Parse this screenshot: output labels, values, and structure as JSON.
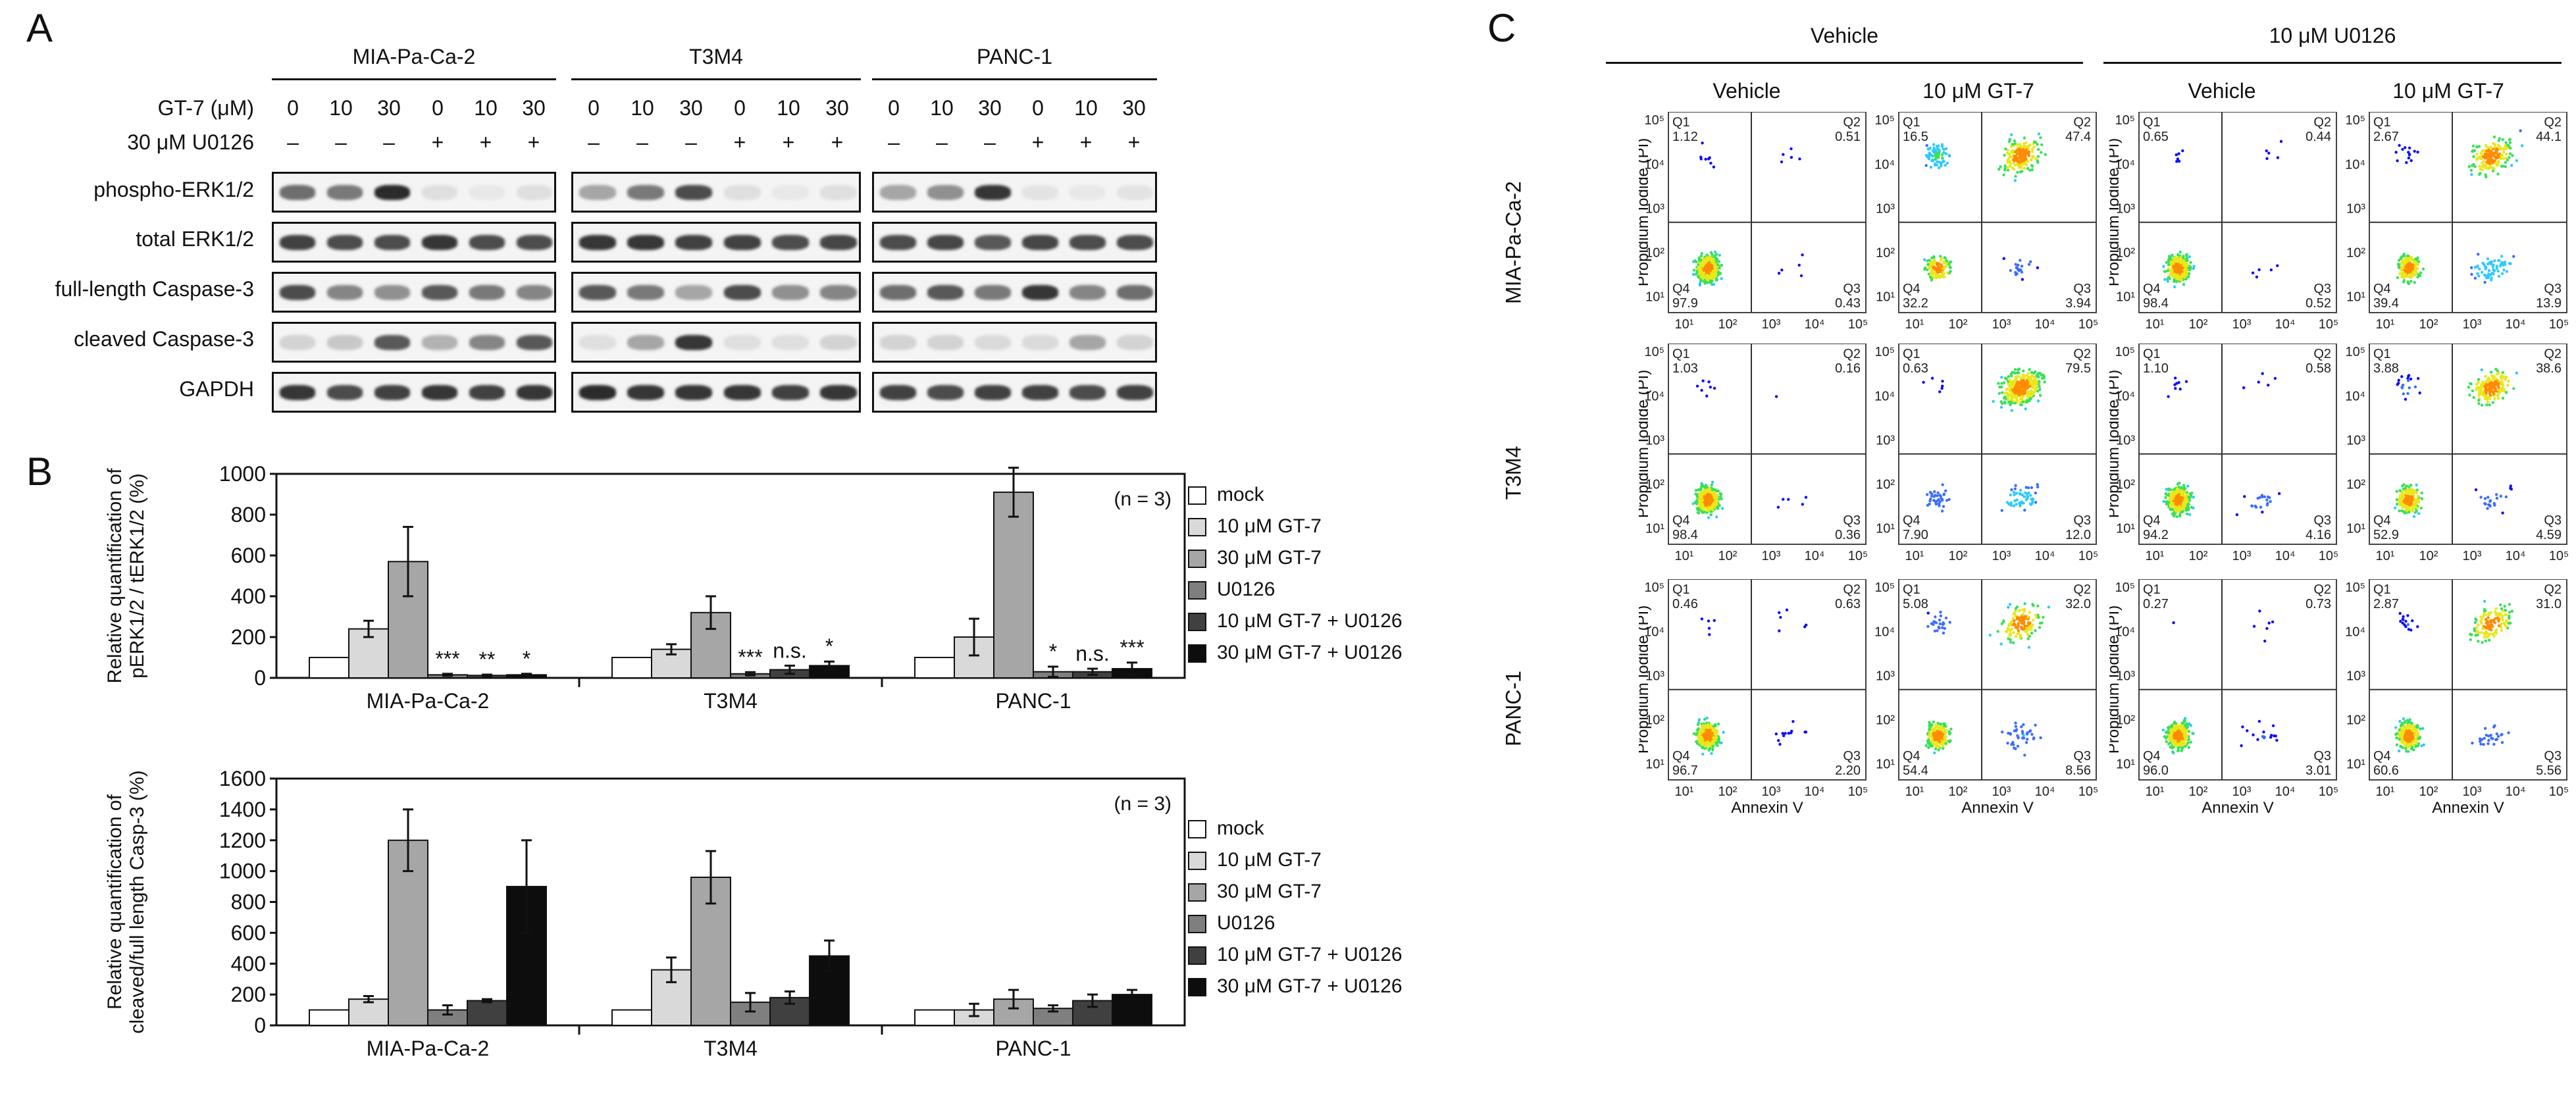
{
  "panels": {
    "a": "A",
    "b": "B",
    "c": "C"
  },
  "panel_a": {
    "cell_lines": [
      "MIA-Pa-Ca-2",
      "T3M4",
      "PANC-1"
    ],
    "row_gt7_label": "GT-7 (μM)",
    "row_u0126_label": "30 μM U0126",
    "gt7_values": [
      "0",
      "10",
      "30",
      "0",
      "10",
      "30"
    ],
    "u0126_values": [
      "–",
      "–",
      "–",
      "+",
      "+",
      "+"
    ],
    "blot_rows": [
      {
        "name": "phospho-ERK1/2",
        "intensity": [
          [
            0.6,
            0.55,
            0.9,
            0.1,
            0.06,
            0.1
          ],
          [
            0.35,
            0.55,
            0.75,
            0.1,
            0.06,
            0.1
          ],
          [
            0.35,
            0.45,
            0.85,
            0.08,
            0.06,
            0.08
          ]
        ]
      },
      {
        "name": "total ERK1/2",
        "intensity": [
          [
            0.8,
            0.75,
            0.75,
            0.85,
            0.75,
            0.75
          ],
          [
            0.85,
            0.85,
            0.8,
            0.8,
            0.75,
            0.78
          ],
          [
            0.75,
            0.78,
            0.7,
            0.78,
            0.75,
            0.75
          ]
        ]
      },
      {
        "name": "full-length Caspase-3",
        "intensity": [
          [
            0.75,
            0.5,
            0.45,
            0.7,
            0.55,
            0.5
          ],
          [
            0.7,
            0.55,
            0.35,
            0.75,
            0.45,
            0.5
          ],
          [
            0.6,
            0.7,
            0.55,
            0.85,
            0.5,
            0.6
          ]
        ]
      },
      {
        "name": "cleaved Caspase-3",
        "intensity": [
          [
            0.15,
            0.2,
            0.7,
            0.3,
            0.5,
            0.7
          ],
          [
            0.1,
            0.35,
            0.85,
            0.1,
            0.1,
            0.15
          ],
          [
            0.15,
            0.15,
            0.12,
            0.12,
            0.35,
            0.15
          ]
        ]
      },
      {
        "name": "GAPDH",
        "intensity": [
          [
            0.85,
            0.75,
            0.8,
            0.85,
            0.8,
            0.85
          ],
          [
            0.9,
            0.85,
            0.85,
            0.85,
            0.8,
            0.85
          ],
          [
            0.8,
            0.75,
            0.8,
            0.8,
            0.75,
            0.8
          ]
        ]
      }
    ]
  },
  "panel_b": {
    "legend": [
      "mock",
      "10 μM GT-7",
      "30 μM GT-7",
      "U0126",
      "10 μM GT-7 + U0126",
      "30 μM GT-7 + U0126"
    ],
    "series_colors": [
      "#ffffff",
      "#d9d9d9",
      "#a6a6a6",
      "#7f7f7f",
      "#404040",
      "#0d0d0d"
    ]
  },
  "chart_data": [
    {
      "type": "bar",
      "title": "",
      "ylabel": "Relative quantification of pERK1/2 / tERK1/2 (%)",
      "ylabel_lines": [
        "Relative quantification of",
        "pERK1/2 / tERK1/2 (%)"
      ],
      "ylim": [
        0,
        1000
      ],
      "yticks": [
        0,
        200,
        400,
        600,
        800,
        1000
      ],
      "categories": [
        "MIA-Pa-Ca-2",
        "T3M4",
        "PANC-1"
      ],
      "note": "(n = 3)",
      "series": [
        {
          "name": "mock",
          "values": [
            100,
            100,
            100
          ],
          "errors": [
            0,
            0,
            0
          ]
        },
        {
          "name": "10 μM GT-7",
          "values": [
            240,
            140,
            200
          ],
          "errors": [
            40,
            25,
            90
          ]
        },
        {
          "name": "30 μM GT-7",
          "values": [
            570,
            320,
            910
          ],
          "errors": [
            170,
            80,
            120
          ]
        },
        {
          "name": "U0126",
          "values": [
            15,
            20,
            30
          ],
          "errors": [
            5,
            8,
            25
          ]
        },
        {
          "name": "10 μM GT-7 + U0126",
          "values": [
            12,
            40,
            30
          ],
          "errors": [
            4,
            20,
            15
          ]
        },
        {
          "name": "30 μM GT-7 + U0126",
          "values": [
            15,
            60,
            45
          ],
          "errors": [
            5,
            20,
            30
          ]
        }
      ],
      "annotations": [
        [
          "",
          "",
          "",
          "***",
          "**",
          "*"
        ],
        [
          "",
          "",
          "",
          "***",
          "n.s.",
          "*"
        ],
        [
          "",
          "",
          "",
          "*",
          "n.s.",
          "***"
        ]
      ]
    },
    {
      "type": "bar",
      "title": "",
      "ylabel": "Relative quantification of cleaved/full length Casp-3 (%)",
      "ylabel_lines": [
        "Relative quantification of",
        "cleaved/full length Casp-3 (%)"
      ],
      "ylim": [
        0,
        1600
      ],
      "yticks": [
        0,
        200,
        400,
        600,
        800,
        1000,
        1200,
        1400,
        1600
      ],
      "categories": [
        "MIA-Pa-Ca-2",
        "T3M4",
        "PANC-1"
      ],
      "note": "(n = 3)",
      "series": [
        {
          "name": "mock",
          "values": [
            100,
            100,
            100
          ],
          "errors": [
            0,
            0,
            0
          ]
        },
        {
          "name": "10 μM GT-7",
          "values": [
            170,
            360,
            100
          ],
          "errors": [
            20,
            80,
            40
          ]
        },
        {
          "name": "30 μM GT-7",
          "values": [
            1200,
            960,
            170
          ],
          "errors": [
            200,
            170,
            60
          ]
        },
        {
          "name": "U0126",
          "values": [
            100,
            150,
            110
          ],
          "errors": [
            30,
            60,
            20
          ]
        },
        {
          "name": "10 μM GT-7 + U0126",
          "values": [
            160,
            180,
            160
          ],
          "errors": [
            10,
            40,
            40
          ]
        },
        {
          "name": "30 μM GT-7 + U0126",
          "values": [
            900,
            450,
            200
          ],
          "errors": [
            300,
            100,
            30
          ]
        }
      ],
      "annotations": [
        [
          "",
          "",
          "",
          "",
          "",
          ""
        ],
        [
          "",
          "",
          "",
          "",
          "",
          ""
        ],
        [
          "",
          "",
          "",
          "",
          "",
          ""
        ]
      ]
    }
  ],
  "panel_c": {
    "group_headers": [
      "Vehicle",
      "10 μM U0126"
    ],
    "col_headers": [
      "Vehicle",
      "10 μM GT-7",
      "Vehicle",
      "10 μM GT-7"
    ],
    "row_labels": [
      "MIA-Pa-Ca-2",
      "T3M4",
      "PANC-1"
    ],
    "y_axis_label": "Propidium Iodide (PI)",
    "x_axis_label": "Annexin V",
    "tick_labels": [
      "10¹",
      "10²",
      "10³",
      "10⁴",
      "10⁵"
    ],
    "quadrant_names": [
      "Q1",
      "Q2",
      "Q3",
      "Q4"
    ],
    "plots": [
      [
        {
          "q1": "1.12",
          "q2": "0.51",
          "q3": "0.43",
          "q4": "97.9"
        },
        {
          "q1": "16.5",
          "q2": "47.4",
          "q3": "3.94",
          "q4": "32.2"
        },
        {
          "q1": "0.65",
          "q2": "0.44",
          "q3": "0.52",
          "q4": "98.4"
        },
        {
          "q1": "2.67",
          "q2": "44.1",
          "q3": "13.9",
          "q4": "39.4"
        }
      ],
      [
        {
          "q1": "1.03",
          "q2": "0.16",
          "q3": "0.36",
          "q4": "98.4"
        },
        {
          "q1": "0.63",
          "q2": "79.5",
          "q3": "12.0",
          "q4": "7.90"
        },
        {
          "q1": "1.10",
          "q2": "0.58",
          "q3": "4.16",
          "q4": "94.2"
        },
        {
          "q1": "3.88",
          "q2": "38.6",
          "q3": "4.59",
          "q4": "52.9"
        }
      ],
      [
        {
          "q1": "0.46",
          "q2": "0.63",
          "q3": "2.20",
          "q4": "96.7"
        },
        {
          "q1": "5.08",
          "q2": "32.0",
          "q3": "8.56",
          "q4": "54.4"
        },
        {
          "q1": "0.27",
          "q2": "0.73",
          "q3": "3.01",
          "q4": "96.0"
        },
        {
          "q1": "2.87",
          "q2": "31.0",
          "q3": "5.56",
          "q4": "60.6"
        }
      ]
    ]
  }
}
